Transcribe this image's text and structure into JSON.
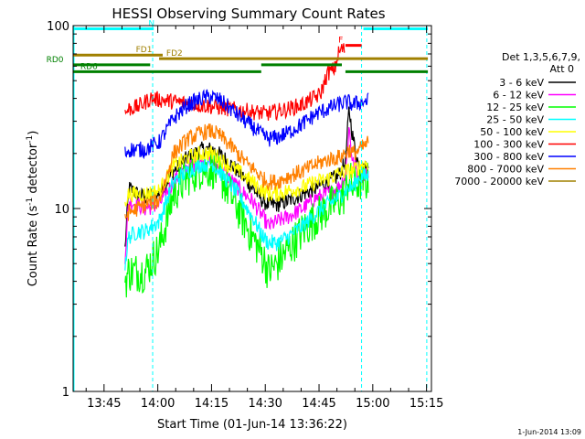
{
  "chart_data": {
    "type": "line",
    "title": "HESSI Observing Summary Count Rates",
    "xlabel": "Start Time (01-Jun-14 13:36:22)",
    "ylabel_main": "Count Rate (s",
    "ylabel_exp1": "-1",
    "ylabel_mid": " detector",
    "ylabel_exp2": "-1",
    "ylabel_end": ")",
    "yscale": "log",
    "ylim": [
      1,
      100
    ],
    "xlim_minutes": [
      0,
      100
    ],
    "x_ticks": [
      {
        "label": "13:45",
        "m": 8.63
      },
      {
        "label": "14:00",
        "m": 23.63
      },
      {
        "label": "14:15",
        "m": 38.63
      },
      {
        "label": "14:30",
        "m": 53.63
      },
      {
        "label": "14:45",
        "m": 68.63
      },
      {
        "label": "15:00",
        "m": 83.63
      },
      {
        "label": "15:15",
        "m": 98.63
      }
    ],
    "y_ticks": [
      {
        "label": "1",
        "v": 1
      },
      {
        "label": "10",
        "v": 10
      },
      {
        "label": "100",
        "v": 100
      }
    ],
    "legend": {
      "header1": "Det 1,3,5,6,7,9,",
      "header2": "Att 0",
      "position": "right"
    },
    "series": [
      {
        "name": "3 - 6 keV",
        "color": "#000000",
        "pts": [
          [
            14.5,
            6
          ],
          [
            15.5,
            13
          ],
          [
            18,
            12
          ],
          [
            20,
            11.5
          ],
          [
            24,
            12
          ],
          [
            28,
            16
          ],
          [
            32,
            19
          ],
          [
            36,
            21
          ],
          [
            39,
            21
          ],
          [
            42,
            19
          ],
          [
            46,
            16
          ],
          [
            50,
            13
          ],
          [
            53,
            11
          ],
          [
            54.5,
            10.5
          ],
          [
            57,
            10.5
          ],
          [
            60,
            11
          ],
          [
            64,
            12
          ],
          [
            68,
            13
          ],
          [
            71,
            14
          ],
          [
            74,
            15
          ],
          [
            76,
            18
          ],
          [
            77,
            35
          ],
          [
            78,
            25
          ],
          [
            80,
            16
          ],
          [
            82.5,
            17
          ]
        ]
      },
      {
        "name": "6 - 12 keV",
        "color": "#ff00ff",
        "pts": [
          [
            14.5,
            5.5
          ],
          [
            15.5,
            11
          ],
          [
            18,
            10.5
          ],
          [
            20,
            10
          ],
          [
            24,
            10.5
          ],
          [
            28,
            14
          ],
          [
            32,
            17
          ],
          [
            36,
            18
          ],
          [
            39,
            18
          ],
          [
            42,
            16
          ],
          [
            46,
            13
          ],
          [
            50,
            11
          ],
          [
            53,
            9
          ],
          [
            54.5,
            8
          ],
          [
            57,
            8.5
          ],
          [
            60,
            9
          ],
          [
            64,
            10
          ],
          [
            68,
            11.5
          ],
          [
            71,
            12
          ],
          [
            74,
            13
          ],
          [
            76,
            15
          ],
          [
            77,
            28
          ],
          [
            78,
            18
          ],
          [
            80,
            15
          ],
          [
            82.5,
            16
          ]
        ]
      },
      {
        "name": "12 - 25 keV",
        "color": "#00ff00",
        "pts": [
          [
            14.5,
            4
          ],
          [
            15.5,
            4.5
          ],
          [
            18,
            4.5
          ],
          [
            20,
            4.5
          ],
          [
            24,
            6
          ],
          [
            28,
            12
          ],
          [
            32,
            15
          ],
          [
            36,
            16.5
          ],
          [
            39,
            16.5
          ],
          [
            42,
            14
          ],
          [
            46,
            10
          ],
          [
            50,
            7
          ],
          [
            53,
            5.5
          ],
          [
            54.5,
            4.5
          ],
          [
            57,
            5
          ],
          [
            60,
            6
          ],
          [
            64,
            7.5
          ],
          [
            68,
            9
          ],
          [
            71,
            10
          ],
          [
            74,
            11
          ],
          [
            76,
            12
          ],
          [
            77,
            15
          ],
          [
            78,
            13
          ],
          [
            80,
            14
          ],
          [
            82.5,
            14
          ]
        ]
      },
      {
        "name": "25 - 50 keV",
        "color": "#00ffff",
        "pts": [
          [
            14.5,
            5
          ],
          [
            15.5,
            7
          ],
          [
            18,
            7.5
          ],
          [
            20,
            7.5
          ],
          [
            24,
            8.5
          ],
          [
            28,
            14
          ],
          [
            32,
            16
          ],
          [
            36,
            17.5
          ],
          [
            39,
            17.5
          ],
          [
            42,
            15
          ],
          [
            46,
            12
          ],
          [
            50,
            9
          ],
          [
            53,
            7
          ],
          [
            54.5,
            6.5
          ],
          [
            57,
            6.5
          ],
          [
            60,
            7
          ],
          [
            64,
            8
          ],
          [
            68,
            9.5
          ],
          [
            71,
            10.5
          ],
          [
            74,
            11.5
          ],
          [
            76,
            12.5
          ],
          [
            77,
            13
          ],
          [
            78,
            13
          ],
          [
            80,
            15
          ],
          [
            82.5,
            15
          ]
        ]
      },
      {
        "name": "50 - 100 keV",
        "color": "#ffff00",
        "pts": [
          [
            14.5,
            11
          ],
          [
            15.5,
            12
          ],
          [
            18,
            12
          ],
          [
            20,
            12
          ],
          [
            24,
            12.5
          ],
          [
            28,
            17
          ],
          [
            32,
            19
          ],
          [
            36,
            20
          ],
          [
            39,
            20
          ],
          [
            42,
            18
          ],
          [
            46,
            16
          ],
          [
            50,
            14
          ],
          [
            53,
            12.5
          ],
          [
            54.5,
            12
          ],
          [
            57,
            12
          ],
          [
            60,
            12.5
          ],
          [
            64,
            13
          ],
          [
            68,
            14
          ],
          [
            71,
            14.5
          ],
          [
            74,
            15.5
          ],
          [
            76,
            16
          ],
          [
            77,
            16
          ],
          [
            78,
            16
          ],
          [
            80,
            17
          ],
          [
            82.5,
            18
          ]
        ]
      },
      {
        "name": "100 - 300 keV",
        "color": "#ff0000",
        "pts": [
          [
            14.5,
            33
          ],
          [
            15.5,
            35
          ],
          [
            18,
            36
          ],
          [
            20,
            38
          ],
          [
            21.5,
            40
          ],
          [
            54,
            33
          ],
          [
            57,
            34
          ],
          [
            60,
            35
          ],
          [
            64,
            37
          ],
          [
            67,
            40
          ],
          [
            69,
            42
          ],
          [
            71,
            55
          ],
          [
            73,
            58
          ],
          [
            74,
            70
          ],
          [
            75,
            75
          ],
          [
            76,
            73
          ]
        ]
      },
      {
        "name": "300 - 800 keV",
        "color": "#0000ff",
        "pts": [
          [
            14.5,
            20
          ],
          [
            15.5,
            21
          ],
          [
            18,
            21
          ],
          [
            20,
            21
          ],
          [
            24,
            23
          ],
          [
            28,
            31
          ],
          [
            32,
            37
          ],
          [
            36,
            40
          ],
          [
            38.5,
            41
          ],
          [
            41,
            39
          ],
          [
            44,
            35
          ],
          [
            48,
            30
          ],
          [
            51,
            27
          ],
          [
            53,
            25
          ],
          [
            54.5,
            24
          ],
          [
            57,
            24.5
          ],
          [
            60,
            26
          ],
          [
            64,
            29
          ],
          [
            68,
            33
          ],
          [
            71,
            35
          ],
          [
            74,
            37
          ],
          [
            76,
            38
          ],
          [
            77,
            38
          ],
          [
            78,
            37
          ],
          [
            80,
            38
          ],
          [
            82.5,
            39
          ]
        ]
      },
      {
        "name": "800 - 7000 keV",
        "color": "#ff8000",
        "pts": [
          [
            14.5,
            9
          ],
          [
            15.5,
            9.5
          ],
          [
            18,
            10
          ],
          [
            20,
            10.5
          ],
          [
            24,
            11
          ],
          [
            28,
            20
          ],
          [
            32,
            24
          ],
          [
            36,
            26
          ],
          [
            38.5,
            26.5
          ],
          [
            41,
            25
          ],
          [
            44,
            22
          ],
          [
            48,
            18
          ],
          [
            51,
            16
          ],
          [
            53,
            14.5
          ],
          [
            54.5,
            14
          ],
          [
            57,
            14
          ],
          [
            60,
            15
          ],
          [
            64,
            16
          ],
          [
            68,
            17.5
          ],
          [
            71,
            18.5
          ],
          [
            74,
            19
          ],
          [
            76,
            20
          ],
          [
            77,
            21
          ],
          [
            78,
            20
          ],
          [
            80,
            21
          ],
          [
            82.5,
            23
          ]
        ]
      },
      {
        "name": "7000 - 20000 keV",
        "color": "#a08000",
        "pts": []
      }
    ],
    "annotations": [
      {
        "label": "N",
        "color": "#00ffff",
        "y": 96,
        "segments": [
          [
            0,
            22.5
          ],
          [
            81,
            99
          ]
        ],
        "label_m": 21
      },
      {
        "label": "F",
        "color": "#ff0000",
        "y": 78,
        "segments": [
          [
            76,
            80.5
          ]
        ],
        "label_m": 74
      },
      {
        "label": "FD1",
        "color": "#a08000",
        "y": 69,
        "segments": [
          [
            0,
            25
          ]
        ],
        "label_m": 17.5
      },
      {
        "label": "FD2",
        "color": "#a08000",
        "y": 66,
        "segments": [
          [
            24,
            99
          ]
        ],
        "label_m": 26
      },
      {
        "label": "RD0",
        "color": "#008000",
        "y": 61,
        "segments": [
          [
            0,
            21.5
          ],
          [
            52.5,
            75
          ]
        ],
        "label_m": -7.5
      },
      {
        "label": "RD6",
        "color": "#008000",
        "y": 56,
        "segments": [
          [
            0,
            25
          ],
          [
            25,
            52.5
          ],
          [
            76,
            99
          ]
        ],
        "label_m": 2
      }
    ],
    "vlines": [
      {
        "m": 22.2,
        "color": "#00ffff"
      },
      {
        "m": 80.5,
        "color": "#00ffff"
      },
      {
        "m": 98.7,
        "color": "#00ffff"
      }
    ],
    "timestamp": "1-Jun-2014 13:09"
  }
}
